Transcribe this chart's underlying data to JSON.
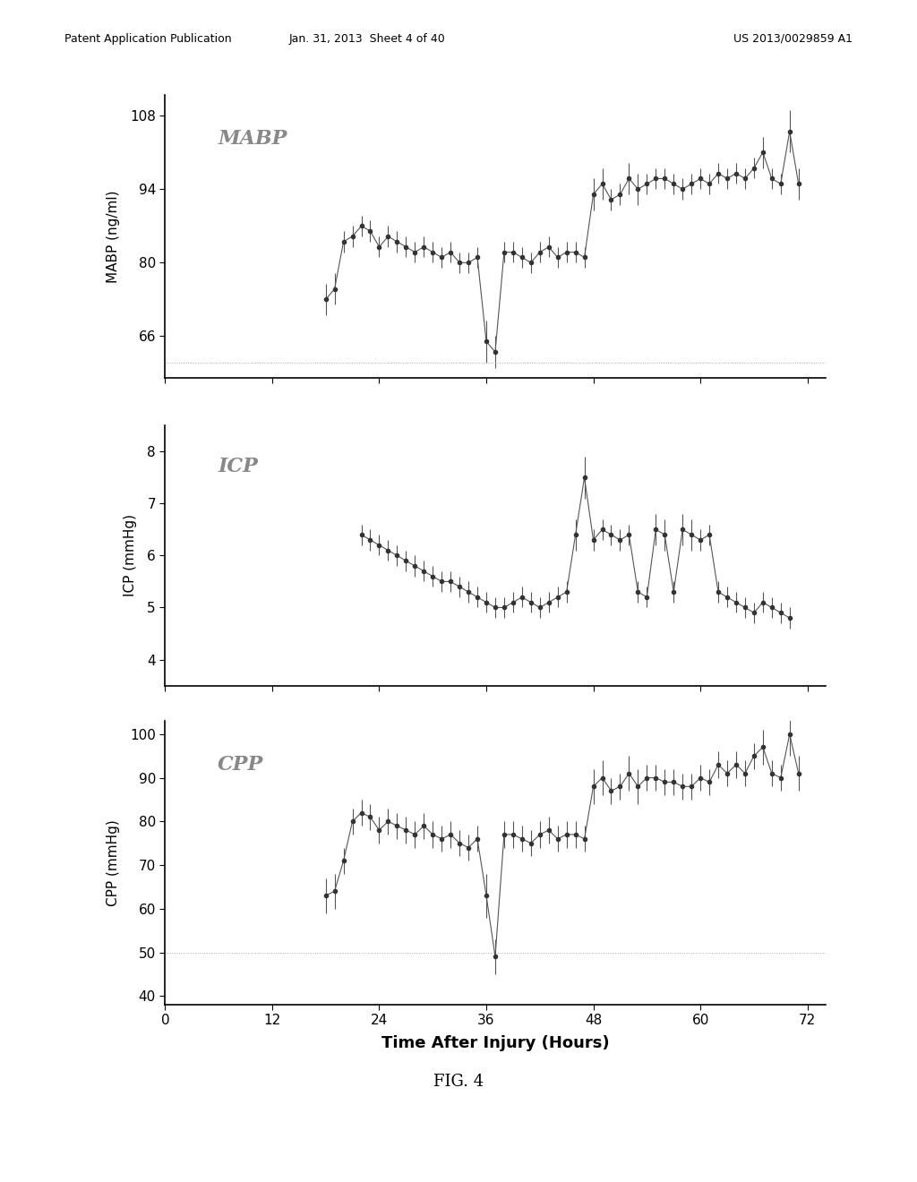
{
  "header_left": "Patent Application Publication",
  "header_mid": "Jan. 31, 2013  Sheet 4 of 40",
  "header_right": "US 2013/0029859 A1",
  "fig_label": "FIG. 4",
  "xlabel": "Time After Injury (Hours)",
  "xticks": [
    0,
    12,
    24,
    36,
    48,
    60,
    72
  ],
  "mabp_ylabel": "MABP (ng/ml)",
  "mabp_label": "MABP",
  "mabp_ylim": [
    58,
    112
  ],
  "mabp_yticks": [
    66,
    80,
    94,
    108
  ],
  "mabp_hline": 61,
  "mabp_x": [
    18,
    19,
    20,
    21,
    22,
    23,
    24,
    25,
    26,
    27,
    28,
    29,
    30,
    31,
    32,
    33,
    34,
    35,
    36,
    37,
    38,
    39,
    40,
    41,
    42,
    43,
    44,
    45,
    46,
    47,
    48,
    49,
    50,
    51,
    52,
    53,
    54,
    55,
    56,
    57,
    58,
    59,
    60,
    61,
    62,
    63,
    64,
    65,
    66,
    67,
    68,
    69,
    70,
    71
  ],
  "mabp_y": [
    73,
    75,
    84,
    85,
    87,
    86,
    83,
    85,
    84,
    83,
    82,
    83,
    82,
    81,
    82,
    80,
    80,
    81,
    65,
    63,
    82,
    82,
    81,
    80,
    82,
    83,
    81,
    82,
    82,
    81,
    93,
    95,
    92,
    93,
    96,
    94,
    95,
    96,
    96,
    95,
    94,
    95,
    96,
    95,
    97,
    96,
    97,
    96,
    98,
    101,
    96,
    95,
    105,
    95
  ],
  "mabp_yerr": [
    3,
    3,
    2,
    2,
    2,
    2,
    2,
    2,
    2,
    2,
    2,
    2,
    2,
    2,
    2,
    2,
    2,
    2,
    4,
    3,
    2,
    2,
    2,
    2,
    2,
    2,
    2,
    2,
    2,
    2,
    3,
    3,
    2,
    2,
    3,
    3,
    2,
    2,
    2,
    2,
    2,
    2,
    2,
    2,
    2,
    2,
    2,
    2,
    2,
    3,
    2,
    2,
    4,
    3
  ],
  "icp_ylabel": "ICP (mmHg)",
  "icp_label": "ICP",
  "icp_ylim": [
    3.5,
    8.5
  ],
  "icp_yticks": [
    4,
    5,
    6,
    7,
    8
  ],
  "icp_x": [
    22,
    23,
    24,
    25,
    26,
    27,
    28,
    29,
    30,
    31,
    32,
    33,
    34,
    35,
    36,
    37,
    38,
    39,
    40,
    41,
    42,
    43,
    44,
    45,
    46,
    47,
    48,
    49,
    50,
    51,
    52,
    53,
    54,
    55,
    56,
    57,
    58,
    59,
    60,
    61,
    62,
    63,
    64,
    65,
    66,
    67,
    68,
    69,
    70
  ],
  "icp_y": [
    6.4,
    6.3,
    6.2,
    6.1,
    6.0,
    5.9,
    5.8,
    5.7,
    5.6,
    5.5,
    5.5,
    5.4,
    5.3,
    5.2,
    5.1,
    5.0,
    5.0,
    5.1,
    5.2,
    5.1,
    5.0,
    5.1,
    5.2,
    5.3,
    6.4,
    7.5,
    6.3,
    6.5,
    6.4,
    6.3,
    6.4,
    5.3,
    5.2,
    6.5,
    6.4,
    5.3,
    6.5,
    6.4,
    6.3,
    6.4,
    5.3,
    5.2,
    5.1,
    5.0,
    4.9,
    5.1,
    5.0,
    4.9,
    4.8
  ],
  "icp_yerr": [
    0.2,
    0.2,
    0.2,
    0.2,
    0.2,
    0.2,
    0.2,
    0.2,
    0.2,
    0.2,
    0.2,
    0.2,
    0.2,
    0.2,
    0.2,
    0.2,
    0.2,
    0.2,
    0.2,
    0.2,
    0.2,
    0.2,
    0.2,
    0.2,
    0.3,
    0.4,
    0.2,
    0.2,
    0.2,
    0.2,
    0.2,
    0.2,
    0.2,
    0.3,
    0.3,
    0.2,
    0.3,
    0.3,
    0.2,
    0.2,
    0.2,
    0.2,
    0.2,
    0.2,
    0.2,
    0.2,
    0.2,
    0.2,
    0.2
  ],
  "cpp_ylabel": "CPP (mmHg)",
  "cpp_label": "CPP",
  "cpp_ylim": [
    38,
    103
  ],
  "cpp_yticks": [
    40,
    50,
    60,
    70,
    80,
    90,
    100
  ],
  "cpp_hline": 50,
  "cpp_x": [
    18,
    19,
    20,
    21,
    22,
    23,
    24,
    25,
    26,
    27,
    28,
    29,
    30,
    31,
    32,
    33,
    34,
    35,
    36,
    37,
    38,
    39,
    40,
    41,
    42,
    43,
    44,
    45,
    46,
    47,
    48,
    49,
    50,
    51,
    52,
    53,
    54,
    55,
    56,
    57,
    58,
    59,
    60,
    61,
    62,
    63,
    64,
    65,
    66,
    67,
    68,
    69,
    70,
    71
  ],
  "cpp_y": [
    63,
    64,
    71,
    80,
    82,
    81,
    78,
    80,
    79,
    78,
    77,
    79,
    77,
    76,
    77,
    75,
    74,
    76,
    63,
    49,
    77,
    77,
    76,
    75,
    77,
    78,
    76,
    77,
    77,
    76,
    88,
    90,
    87,
    88,
    91,
    88,
    90,
    90,
    89,
    89,
    88,
    88,
    90,
    89,
    93,
    91,
    93,
    91,
    95,
    97,
    91,
    90,
    100,
    91
  ],
  "cpp_yerr": [
    4,
    4,
    3,
    3,
    3,
    3,
    3,
    3,
    3,
    3,
    3,
    3,
    3,
    3,
    3,
    3,
    3,
    3,
    5,
    4,
    3,
    3,
    3,
    3,
    3,
    3,
    3,
    3,
    3,
    3,
    4,
    4,
    3,
    3,
    4,
    4,
    3,
    3,
    3,
    3,
    3,
    3,
    3,
    3,
    3,
    3,
    3,
    3,
    3,
    4,
    3,
    3,
    5,
    4
  ],
  "line_color": "#555555",
  "marker_color": "#333333",
  "hline_color": "#aaaaaa",
  "label_color": "#888888",
  "bg_color": "#ffffff",
  "border_color": "#000000"
}
